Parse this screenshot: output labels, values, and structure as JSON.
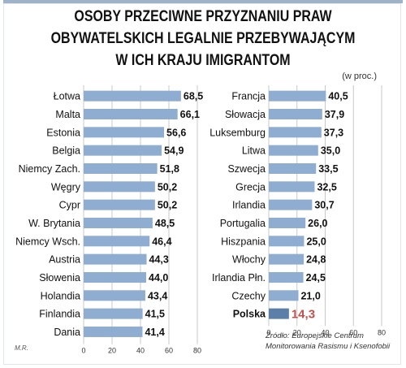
{
  "title_lines": [
    "OSOBY PRZECIWNE PRZYZNANIU PRAW",
    "OBYWATELSKICH  LEGALNIE PRZEBYWAJĄCYM",
    "W ICH KRAJU IMIGRANTOM"
  ],
  "unit": "(w proc.)",
  "source_lines": [
    "Źródło: Europejskie Centrum",
    "Monitorowania Rasismu i Ksenofobii"
  ],
  "author": "M.R.",
  "colors": {
    "bar": "#8fadd0",
    "highlight_bar": "#5b7fa8",
    "highlight_value": "#c0504d",
    "grid": "#c9c9c9"
  },
  "chart_data": [
    {
      "type": "bar",
      "orientation": "horizontal",
      "categories": [
        "Łotwa",
        "Malta",
        "Estonia",
        "Belgia",
        "Niemcy Zach.",
        "Węgry",
        "Cypr",
        "W. Brytania",
        "Niemcy Wsch.",
        "Austria",
        "Słowenia",
        "Holandia",
        "Finlandia",
        "Dania"
      ],
      "values": [
        68.5,
        66.1,
        56.6,
        54.9,
        51.8,
        50.2,
        50.2,
        48.5,
        46.4,
        44.3,
        44.0,
        43.4,
        41.5,
        41.4
      ],
      "value_labels": [
        "68,5",
        "66,1",
        "56,6",
        "54,9",
        "51,8",
        "50,2",
        "50,2",
        "48,5",
        "46,4",
        "44,3",
        "44,0",
        "43,4",
        "41,5",
        "41,4"
      ],
      "xlim": [
        0,
        80
      ],
      "xticks": [
        0,
        20,
        40,
        60,
        80
      ],
      "grid": true
    },
    {
      "type": "bar",
      "orientation": "horizontal",
      "categories": [
        "Francja",
        "Słowacja",
        "Luksemburg",
        "Litwa",
        "Szwecja",
        "Grecja",
        "Irlandia",
        "Portugalia",
        "Hiszpania",
        "Włochy",
        "Irlandia Płn.",
        "Czechy",
        "Polska"
      ],
      "values": [
        40.5,
        37.9,
        37.3,
        35.0,
        33.5,
        32.5,
        30.7,
        26.0,
        25.0,
        24.8,
        24.5,
        21.0,
        14.3
      ],
      "value_labels": [
        "40,5",
        "37,9",
        "37,3",
        "35,0",
        "33,5",
        "32,5",
        "30,7",
        "26,0",
        "25,0",
        "24,8",
        "24,5",
        "21,0",
        "14,3"
      ],
      "highlight": "Polska",
      "xlim": [
        0,
        80
      ],
      "xticks": [
        0,
        20,
        40,
        60,
        80
      ],
      "grid": true
    }
  ]
}
